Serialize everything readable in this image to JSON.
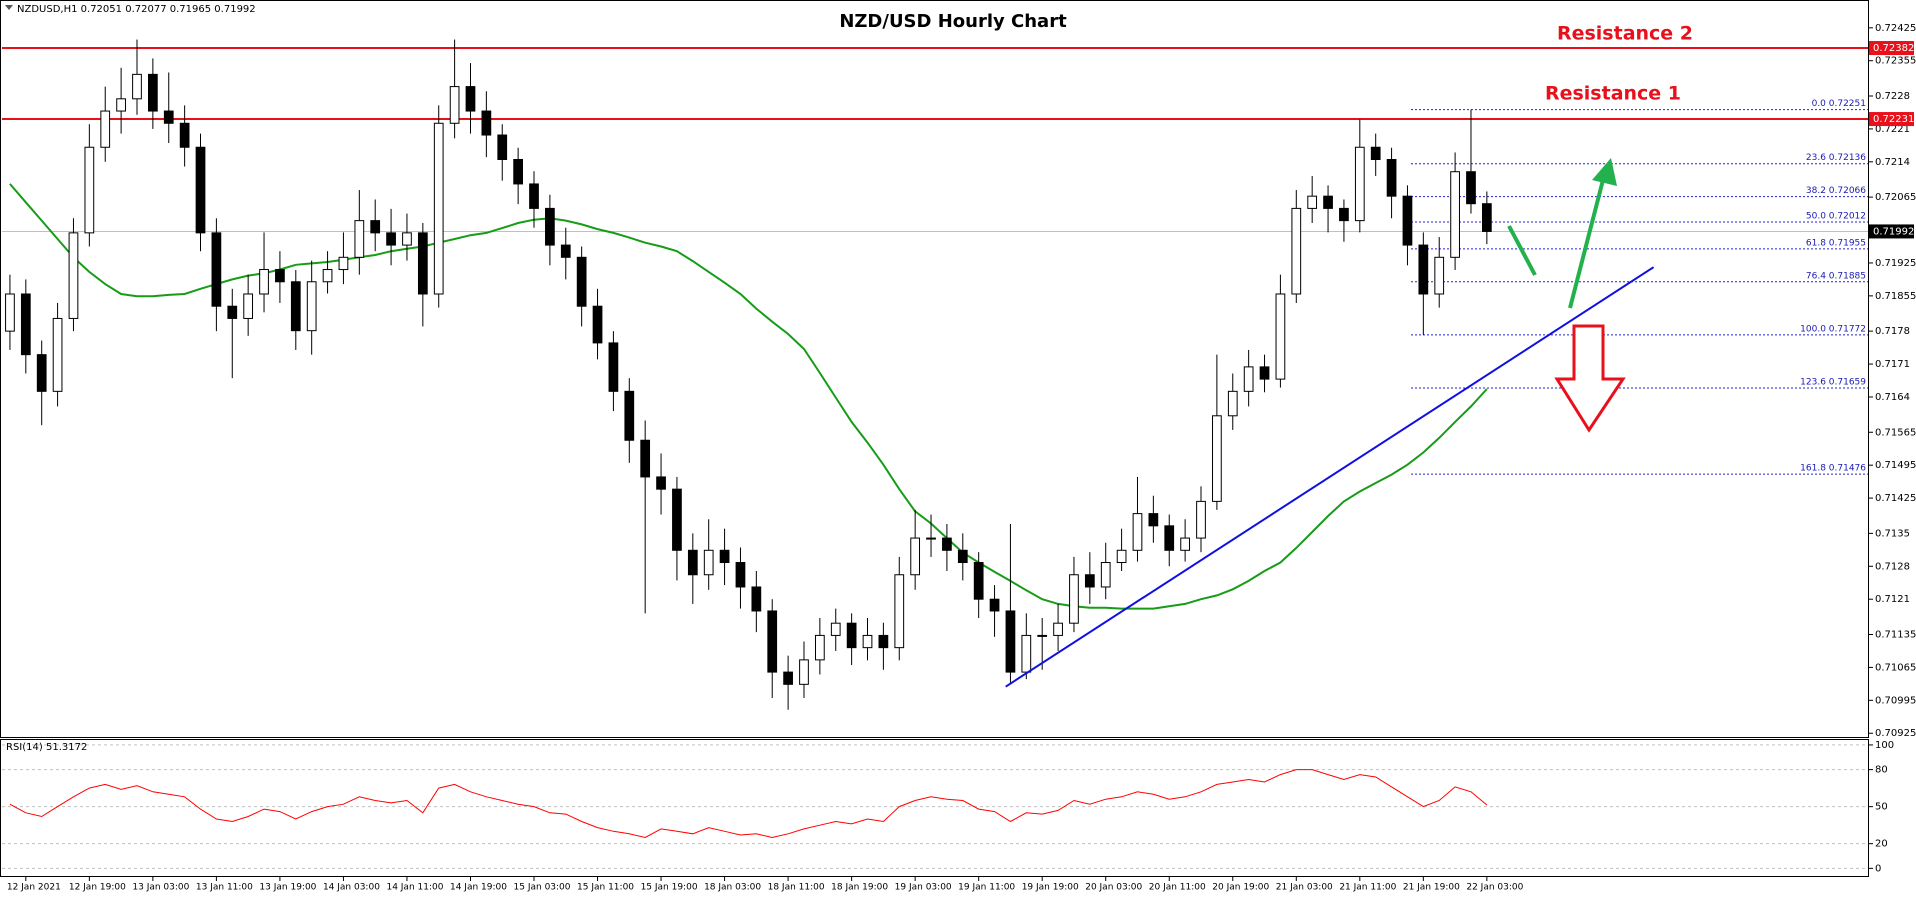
{
  "chart_data": [
    {
      "type": "candlestick",
      "title": "NZD/USD Hourly Chart",
      "symbol": "NZDUSD,H1",
      "ohlc": [
        0.72051,
        0.72077,
        0.71965,
        0.71992
      ],
      "xlim": [
        -0.5,
        117
      ],
      "ylim": [
        0.70917,
        0.72482
      ],
      "yticks": [
        0.72425,
        0.72355,
        0.7228,
        0.7221,
        0.7214,
        0.72065,
        0.71925,
        0.71855,
        0.7178,
        0.7171,
        0.7164,
        0.71565,
        0.71495,
        0.71425,
        0.7135,
        0.7128,
        0.7121,
        0.71135,
        0.71065,
        0.70995,
        0.70925
      ],
      "up_color": "#ffffff",
      "down_color": "#000000",
      "open": [
        0.7178,
        0.71859,
        0.7173,
        0.71652,
        0.71807,
        0.71989,
        0.72171,
        0.72248,
        0.72274,
        0.72326,
        0.72248,
        0.72222,
        0.72171,
        0.71989,
        0.71833,
        0.71807,
        0.71859,
        0.71911,
        0.71885,
        0.71781,
        0.71885,
        0.71911,
        0.71937,
        0.72015,
        0.71989,
        0.71963,
        0.71989,
        0.71859,
        0.72222,
        0.723,
        0.72248,
        0.72197,
        0.72145,
        0.72093,
        0.72041,
        0.71963,
        0.71937,
        0.71833,
        0.71755,
        0.71652,
        0.71548,
        0.7147,
        0.71444,
        0.71314,
        0.71262,
        0.71314,
        0.71288,
        0.71236,
        0.71185,
        0.71055,
        0.71029,
        0.71081,
        0.71133,
        0.71159,
        0.71107,
        0.71133,
        0.71107,
        0.71262,
        0.7134,
        0.7134,
        0.71314,
        0.71288,
        0.7121,
        0.71185,
        0.71055,
        0.71133,
        0.71133,
        0.71159,
        0.71262,
        0.71236,
        0.71288,
        0.71314,
        0.71392,
        0.71366,
        0.71314,
        0.7134,
        0.71418,
        0.716,
        0.71652,
        0.71704,
        0.71678,
        0.71859,
        0.72041,
        0.72067,
        0.72041,
        0.72015,
        0.72171,
        0.72145,
        0.72067,
        0.71963,
        0.71859,
        0.71937,
        0.72119,
        0.72051
      ],
      "high": [
        0.719,
        0.7189,
        0.7176,
        0.7184,
        0.7202,
        0.7222,
        0.723,
        0.7234,
        0.724,
        0.7236,
        0.7233,
        0.7226,
        0.722,
        0.7202,
        0.7187,
        0.719,
        0.7199,
        0.7195,
        0.7191,
        0.7193,
        0.7195,
        0.7199,
        0.7208,
        0.7206,
        0.7204,
        0.7203,
        0.7201,
        0.7226,
        0.724,
        0.7235,
        0.7229,
        0.7222,
        0.7217,
        0.7212,
        0.7207,
        0.72,
        0.7196,
        0.7187,
        0.7178,
        0.7168,
        0.7159,
        0.7152,
        0.7147,
        0.7135,
        0.7138,
        0.7136,
        0.7132,
        0.7127,
        0.7121,
        0.7109,
        0.7112,
        0.7117,
        0.7119,
        0.7118,
        0.7117,
        0.7116,
        0.713,
        0.714,
        0.7139,
        0.7137,
        0.7135,
        0.7131,
        0.7124,
        0.7137,
        0.7118,
        0.7117,
        0.712,
        0.713,
        0.7131,
        0.7133,
        0.7136,
        0.7147,
        0.7143,
        0.7139,
        0.7138,
        0.7145,
        0.7173,
        0.7169,
        0.7174,
        0.7173,
        0.719,
        0.7208,
        0.7211,
        0.7209,
        0.7206,
        0.7223,
        0.722,
        0.7217,
        0.7209,
        0.7199,
        0.7198,
        0.7216,
        0.72251,
        0.72077
      ],
      "low": [
        0.7174,
        0.7169,
        0.7158,
        0.7162,
        0.7178,
        0.7196,
        0.7214,
        0.722,
        0.7224,
        0.7221,
        0.7218,
        0.7213,
        0.7195,
        0.7178,
        0.7168,
        0.7177,
        0.7182,
        0.7184,
        0.7174,
        0.7173,
        0.7186,
        0.7188,
        0.719,
        0.7195,
        0.7192,
        0.7193,
        0.7179,
        0.7183,
        0.7219,
        0.722,
        0.7215,
        0.721,
        0.7205,
        0.72,
        0.7192,
        0.7189,
        0.7179,
        0.7172,
        0.7161,
        0.715,
        0.7118,
        0.7139,
        0.7125,
        0.712,
        0.7123,
        0.7124,
        0.7119,
        0.7114,
        0.71,
        0.70975,
        0.71,
        0.7105,
        0.711,
        0.7107,
        0.7108,
        0.7106,
        0.7108,
        0.7123,
        0.713,
        0.7127,
        0.7125,
        0.7117,
        0.7113,
        0.7103,
        0.7104,
        0.7106,
        0.711,
        0.7114,
        0.712,
        0.7121,
        0.7127,
        0.7129,
        0.7133,
        0.7128,
        0.7129,
        0.7131,
        0.714,
        0.7157,
        0.7162,
        0.7165,
        0.7166,
        0.7184,
        0.7201,
        0.7199,
        0.7197,
        0.7199,
        0.7211,
        0.7202,
        0.7192,
        0.71772,
        0.7183,
        0.7191,
        0.7203,
        0.71965
      ],
      "close": [
        0.71859,
        0.7173,
        0.71652,
        0.71807,
        0.71989,
        0.72171,
        0.72248,
        0.72274,
        0.72326,
        0.72248,
        0.72222,
        0.72171,
        0.71989,
        0.71833,
        0.71807,
        0.71859,
        0.71911,
        0.71885,
        0.71781,
        0.71885,
        0.71911,
        0.71937,
        0.72015,
        0.71989,
        0.71963,
        0.71989,
        0.71859,
        0.72222,
        0.723,
        0.72248,
        0.72197,
        0.72145,
        0.72093,
        0.72041,
        0.71963,
        0.71937,
        0.71833,
        0.71755,
        0.71652,
        0.71548,
        0.7147,
        0.71444,
        0.71314,
        0.71262,
        0.71314,
        0.71288,
        0.71236,
        0.71185,
        0.71055,
        0.71029,
        0.71081,
        0.71133,
        0.71159,
        0.71107,
        0.71133,
        0.71107,
        0.71262,
        0.7134,
        0.7134,
        0.71314,
        0.71288,
        0.7121,
        0.71185,
        0.71055,
        0.71133,
        0.71133,
        0.71159,
        0.71262,
        0.71236,
        0.71288,
        0.71314,
        0.71392,
        0.71366,
        0.71314,
        0.7134,
        0.71418,
        0.716,
        0.71652,
        0.71704,
        0.71678,
        0.71859,
        0.72041,
        0.72067,
        0.72041,
        0.72015,
        0.72171,
        0.72145,
        0.72067,
        0.71963,
        0.71859,
        0.71937,
        0.72119,
        0.72051,
        0.71992
      ],
      "moving_average": {
        "color": "#169c16",
        "values": [
          0.72093,
          0.72054,
          0.72015,
          0.71976,
          0.71937,
          0.71906,
          0.7188,
          0.71859,
          0.71854,
          0.71854,
          0.71857,
          0.71859,
          0.7187,
          0.7188,
          0.7189,
          0.71898,
          0.71903,
          0.71911,
          0.71921,
          0.71924,
          0.71927,
          0.71932,
          0.71937,
          0.71942,
          0.7195,
          0.71955,
          0.7196,
          0.71968,
          0.71976,
          0.71984,
          0.71989,
          0.71999,
          0.7201,
          0.72017,
          0.7202,
          0.72015,
          0.72007,
          0.71997,
          0.71989,
          0.71979,
          0.71968,
          0.7196,
          0.7195,
          0.71929,
          0.71906,
          0.71883,
          0.71859,
          0.71828,
          0.718,
          0.71774,
          0.71742,
          0.71691,
          0.71639,
          0.71587,
          0.71543,
          0.71496,
          0.71444,
          0.71397,
          0.71371,
          0.7134,
          0.71309,
          0.71288,
          0.71268,
          0.71249,
          0.71229,
          0.7121,
          0.712,
          0.71195,
          0.71192,
          0.71192,
          0.7119,
          0.7119,
          0.7119,
          0.71195,
          0.712,
          0.7121,
          0.71218,
          0.71231,
          0.71249,
          0.7127,
          0.71288,
          0.71319,
          0.71353,
          0.71387,
          0.71418,
          0.71439,
          0.71457,
          0.71475,
          0.71496,
          0.71522,
          0.71553,
          0.71587,
          0.7162,
          0.71657
        ]
      },
      "resistance_levels": [
        0.72382,
        0.72231
      ],
      "resistance_color": "#e8101a",
      "trendline": {
        "x": [
          62.7,
          103.5
        ],
        "y": [
          0.71024,
          0.71916
        ],
        "color": "#1010e0"
      },
      "fibonacci": [
        {
          "value": 0.72251,
          "label": "0.0 0.72251"
        },
        {
          "value": 0.72136,
          "label": "23.6 0.72136"
        },
        {
          "value": 0.72066,
          "label": "38.2 0.72066"
        },
        {
          "value": 0.72012,
          "label": "50.0 0.72012"
        },
        {
          "value": 0.71955,
          "label": "61.8 0.71955"
        },
        {
          "value": 0.71885,
          "label": "76.4 0.71885"
        },
        {
          "value": 0.71772,
          "label": "100.0 0.71772"
        },
        {
          "value": 0.71659,
          "label": "123.6 0.71659"
        },
        {
          "value": 0.71476,
          "label": "161.8 0.71476"
        }
      ],
      "annotations": [
        "Resistance 2",
        "Resistance 1"
      ]
    },
    {
      "type": "line",
      "title": "RSI(14)",
      "color": "#ff0000",
      "xlim": [
        -0.5,
        117
      ],
      "ylim": [
        -7,
        104
      ],
      "yticks": [
        100,
        80,
        50,
        20,
        0
      ],
      "xticks": [
        {
          "value": 1,
          "label": "12 Jan 2021"
        },
        {
          "value": 5,
          "label": "12 Jan 19:00"
        },
        {
          "value": 9,
          "label": "13 Jan 03:00"
        },
        {
          "value": 13,
          "label": "13 Jan 11:00"
        },
        {
          "value": 17,
          "label": "13 Jan 19:00"
        },
        {
          "value": 21,
          "label": "14 Jan 03:00"
        },
        {
          "value": 25,
          "label": "14 Jan 11:00"
        },
        {
          "value": 29,
          "label": "14 Jan 19:00"
        },
        {
          "value": 33,
          "label": "15 Jan 03:00"
        },
        {
          "value": 37,
          "label": "15 Jan 11:00"
        },
        {
          "value": 41,
          "label": "15 Jan 19:00"
        },
        {
          "value": 45,
          "label": "18 Jan 03:00"
        },
        {
          "value": 49,
          "label": "18 Jan 11:00"
        },
        {
          "value": 53,
          "label": "18 Jan 19:00"
        },
        {
          "value": 57,
          "label": "19 Jan 03:00"
        },
        {
          "value": 61,
          "label": "19 Jan 11:00"
        },
        {
          "value": 65,
          "label": "19 Jan 19:00"
        },
        {
          "value": 69,
          "label": "20 Jan 03:00"
        },
        {
          "value": 73,
          "label": "20 Jan 11:00"
        },
        {
          "value": 77,
          "label": "20 Jan 19:00"
        },
        {
          "value": 81,
          "label": "21 Jan 03:00"
        },
        {
          "value": 85,
          "label": "21 Jan 11:00"
        },
        {
          "value": 89,
          "label": "21 Jan 19:00"
        },
        {
          "value": 93,
          "label": "22 Jan 03:00"
        }
      ],
      "values": [
        52,
        45,
        42,
        50,
        58,
        65,
        68,
        64,
        67,
        62,
        60,
        58,
        48,
        40,
        38,
        42,
        48,
        46,
        40,
        46,
        50,
        52,
        58,
        55,
        53,
        55,
        45,
        65,
        68,
        62,
        58,
        55,
        52,
        50,
        45,
        44,
        38,
        33,
        30,
        28,
        25,
        32,
        30,
        28,
        33,
        30,
        27,
        28,
        25,
        28,
        32,
        35,
        38,
        36,
        40,
        38,
        50,
        55,
        58,
        56,
        55,
        48,
        46,
        38,
        45,
        44,
        47,
        55,
        52,
        56,
        58,
        62,
        60,
        56,
        58,
        62,
        68,
        70,
        72,
        70,
        76,
        80,
        80,
        76,
        72,
        76,
        74,
        66,
        58,
        50,
        55,
        66,
        62,
        51.3172
      ]
    }
  ]
}
